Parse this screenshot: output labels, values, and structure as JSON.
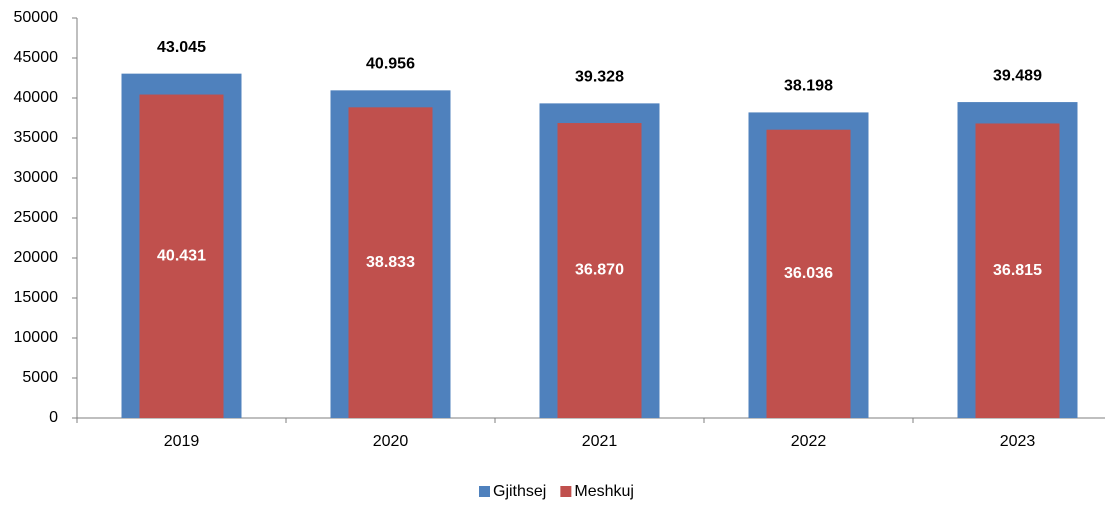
{
  "chart_data": {
    "type": "overlap-bar",
    "categories": [
      "2019",
      "2020",
      "2021",
      "2022",
      "2023"
    ],
    "series": [
      {
        "name": "Gjithsej",
        "color": "#4f81bd",
        "values": [
          43045,
          40956,
          39328,
          38198,
          39489
        ],
        "value_labels": [
          "43.045",
          "40.956",
          "39.328",
          "38.198",
          "39.489"
        ]
      },
      {
        "name": "Meshkuj",
        "color": "#c0504d",
        "values": [
          40431,
          38833,
          36870,
          36036,
          36815
        ],
        "value_labels": [
          "40.431",
          "38.833",
          "36.870",
          "36.036",
          "36.815"
        ]
      }
    ],
    "ylim": [
      0,
      50000
    ],
    "yticks": [
      0,
      5000,
      10000,
      15000,
      20000,
      25000,
      30000,
      35000,
      40000,
      45000,
      50000
    ],
    "grid": false,
    "legend": "bottom"
  }
}
